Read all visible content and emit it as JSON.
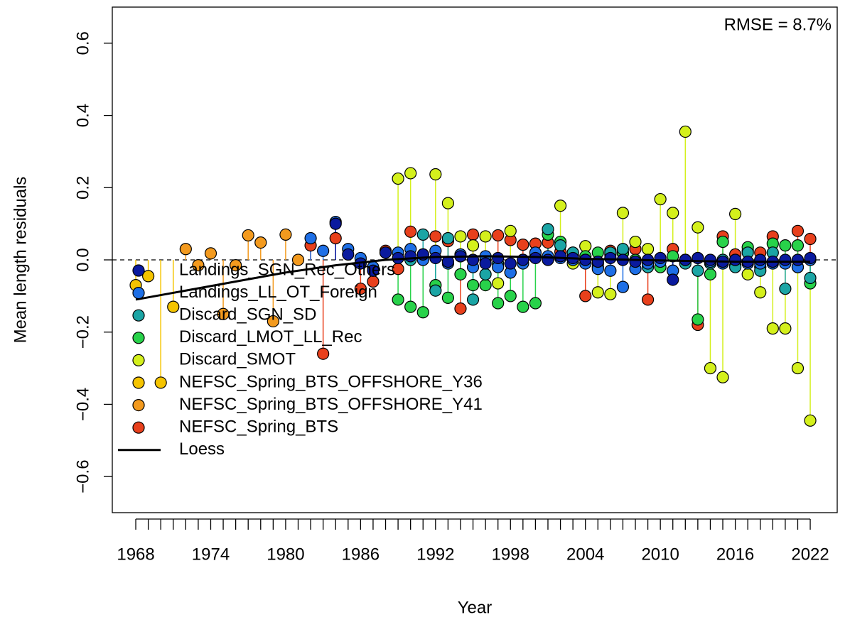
{
  "chart_data": {
    "type": "scatter",
    "x_label": "Year",
    "y_label": "Mean length residuals",
    "annotation": "RMSE = 8.7%",
    "xlim": [
      1966.12,
      2024.16
    ],
    "ylim": [
      -0.7,
      0.7
    ],
    "xticks": [
      1968,
      1974,
      1980,
      1986,
      1992,
      1998,
      2004,
      2010,
      2016,
      2022
    ],
    "x_minor_ticks": [
      1968,
      1969,
      1970,
      1971,
      1972,
      1973,
      1974,
      1975,
      1976,
      1977,
      1978,
      1979,
      1980,
      1981,
      1982,
      1983,
      1984,
      1985,
      1986,
      1987,
      1988,
      1989,
      1990,
      1991,
      1992,
      1993,
      1994,
      1995,
      1996,
      1997,
      1998,
      1999,
      2000,
      2001,
      2002,
      2003,
      2004,
      2005,
      2006,
      2007,
      2008,
      2009,
      2010,
      2011,
      2012,
      2013,
      2014,
      2015,
      2016,
      2017,
      2018,
      2019,
      2020,
      2021,
      2022
    ],
    "yticks": [
      {
        "value": -0.6,
        "label": "−0.6"
      },
      {
        "value": -0.4,
        "label": "−0.4"
      },
      {
        "value": -0.2,
        "label": "−0.2"
      },
      {
        "value": 0,
        "label": "0.0"
      },
      0.2,
      0.4,
      0.6
    ],
    "reference_line": 0,
    "legend_position": "left",
    "series": [
      {
        "name": "NEFSC_Spring_BTS_OFFSHORE_Y36",
        "color": "#F5C400",
        "x": [
          1968,
          1969,
          1970,
          1971
        ],
        "values": [
          -0.07,
          -0.045,
          -0.34,
          -0.13
        ]
      },
      {
        "name": "NEFSC_Spring_BTS_OFFSHORE_Y41",
        "color": "#F39A1E",
        "x": [
          1972,
          1973,
          1974,
          1975,
          1976,
          1977,
          1978,
          1979,
          1980,
          1981
        ],
        "values": [
          0.03,
          -0.015,
          0.018,
          -0.15,
          -0.015,
          0.068,
          0.048,
          -0.17,
          0.07,
          0.0
        ]
      },
      {
        "name": "NEFSC_Spring_BTS",
        "color": "#E8401C",
        "x": [
          1982,
          1983,
          1984,
          1986,
          1987,
          1988,
          1989,
          1990,
          1991,
          1992,
          1993,
          1994,
          1995,
          1996,
          1997,
          1998,
          1999,
          2000,
          2001,
          2002,
          2003,
          2004,
          2005,
          2006,
          2007,
          2008,
          2009,
          2010,
          2011,
          2012,
          2013,
          2015,
          2016,
          2017,
          2018,
          2019,
          2021,
          2022
        ],
        "values": [
          0.04,
          -0.26,
          0.06,
          -0.08,
          -0.06,
          0.025,
          -0.025,
          0.078,
          0.015,
          0.065,
          0.052,
          -0.135,
          0.07,
          0.0,
          0.068,
          0.055,
          0.042,
          0.045,
          0.048,
          0.022,
          0.012,
          -0.1,
          -0.01,
          0.025,
          0.018,
          0.03,
          -0.11,
          0.005,
          0.03,
          0.0,
          -0.18,
          0.065,
          0.015,
          0.025,
          0.02,
          0.065,
          0.08,
          0.058
        ]
      },
      {
        "name": "Discard_SMOT",
        "color": "#D4F01C",
        "x": [
          1989,
          1990,
          1992,
          1993,
          1994,
          1995,
          1996,
          1997,
          1998,
          2002,
          2003,
          2004,
          2005,
          2006,
          2007,
          2008,
          2009,
          2010,
          2011,
          2012,
          2013,
          2014,
          2015,
          2016,
          2017,
          2018,
          2019,
          2020,
          2021,
          2022
        ],
        "values": [
          0.225,
          0.24,
          0.237,
          0.157,
          0.065,
          0.04,
          0.065,
          -0.065,
          0.08,
          0.15,
          -0.01,
          0.038,
          -0.09,
          -0.095,
          0.13,
          0.05,
          0.03,
          0.168,
          0.13,
          0.355,
          0.09,
          -0.3,
          -0.325,
          0.127,
          -0.04,
          -0.09,
          -0.19,
          -0.19,
          -0.3,
          -0.445
        ]
      },
      {
        "name": "Discard_LMOT_LL_Rec",
        "color": "#28D24A",
        "x": [
          1989,
          1990,
          1991,
          1992,
          1993,
          1994,
          1995,
          1996,
          1997,
          1998,
          1999,
          2000,
          2001,
          2002,
          2003,
          2004,
          2005,
          2006,
          2007,
          2008,
          2009,
          2010,
          2011,
          2012,
          2013,
          2014,
          2015,
          2016,
          2017,
          2018,
          2019,
          2020,
          2021,
          2022
        ],
        "values": [
          -0.11,
          -0.13,
          -0.145,
          -0.07,
          -0.105,
          -0.04,
          -0.07,
          -0.07,
          -0.12,
          -0.1,
          -0.13,
          -0.12,
          0.07,
          0.05,
          0.02,
          0.01,
          0.02,
          0.015,
          0.02,
          0.0,
          -0.01,
          -0.02,
          0.01,
          -0.005,
          -0.165,
          -0.04,
          0.05,
          -0.015,
          0.035,
          -0.02,
          0.045,
          0.04,
          0.04,
          -0.065
        ]
      },
      {
        "name": "Discard_SGN_SD",
        "color": "#1BA5A5",
        "x": [
          1990,
          1991,
          1992,
          1993,
          1994,
          1995,
          1996,
          1997,
          1998,
          1999,
          2000,
          2001,
          2002,
          2003,
          2004,
          2005,
          2006,
          2007,
          2008,
          2009,
          2010,
          2011,
          2012,
          2013,
          2014,
          2015,
          2016,
          2017,
          2018,
          2019,
          2020,
          2021,
          2022
        ],
        "values": [
          0.0,
          0.07,
          -0.085,
          0.06,
          0.01,
          -0.11,
          -0.04,
          -0.01,
          -0.035,
          0.0,
          0.01,
          0.085,
          0.04,
          0.02,
          0.0,
          -0.02,
          0.02,
          0.03,
          -0.005,
          -0.02,
          0.0,
          -0.03,
          -0.01,
          -0.03,
          -0.01,
          0.0,
          -0.02,
          0.02,
          -0.03,
          0.02,
          -0.08,
          -0.02,
          -0.05
        ]
      },
      {
        "name": "Landings_LL_OT_Foreign",
        "color": "#1E6FE6",
        "x": [
          1982,
          1983,
          1984,
          1985,
          1986,
          1987,
          1988,
          1989,
          1990,
          1991,
          1992,
          1993,
          1994,
          1995,
          1996,
          1997,
          1998,
          1999,
          2000,
          2001,
          2002,
          2003,
          2004,
          2005,
          2006,
          2007,
          2008,
          2009,
          2010,
          2011,
          2012,
          2013,
          2014,
          2015,
          2016,
          2017,
          2018,
          2019,
          2020,
          2021,
          2022
        ],
        "values": [
          0.06,
          0.025,
          0.105,
          0.03,
          0.005,
          -0.02,
          0.02,
          0.02,
          0.03,
          0.0,
          0.025,
          -0.01,
          0.015,
          -0.02,
          0.01,
          -0.02,
          -0.035,
          -0.01,
          0.02,
          0.01,
          0.005,
          0.0,
          -0.01,
          -0.025,
          -0.03,
          -0.075,
          -0.025,
          -0.01,
          -0.005,
          -0.03,
          0.0,
          0.005,
          -0.005,
          -0.01,
          0.0,
          -0.01,
          -0.01,
          -0.01,
          -0.01,
          -0.02,
          0.0
        ]
      },
      {
        "name": "Landings_SGN_Rec_Others",
        "color": "#0A1A9E",
        "x": [
          1984,
          1985,
          1986,
          1987,
          1988,
          1989,
          1990,
          1991,
          1992,
          1993,
          1994,
          1995,
          1996,
          1997,
          1998,
          1999,
          2000,
          2001,
          2002,
          2003,
          2004,
          2005,
          2006,
          2007,
          2008,
          2009,
          2010,
          2011,
          2012,
          2013,
          2014,
          2015,
          2016,
          2017,
          2018,
          2019,
          2020,
          2021,
          2022
        ],
        "values": [
          0.1,
          0.015,
          -0.01,
          -0.03,
          0.02,
          0.005,
          0.01,
          0.015,
          0.005,
          -0.005,
          0.01,
          0.0,
          -0.01,
          0.005,
          -0.01,
          0.0,
          0.005,
          0.0,
          0.01,
          0.005,
          0.0,
          -0.005,
          0.005,
          0.0,
          -0.005,
          0.0,
          0.005,
          -0.055,
          0.0,
          0.005,
          0.0,
          -0.005,
          0.0,
          -0.005,
          0.0,
          -0.005,
          0.0,
          0.0,
          0.005
        ]
      }
    ],
    "legend_order": [
      7,
      6,
      5,
      4,
      3,
      0,
      1,
      2
    ],
    "loess": {
      "name": "Loess",
      "color": "#000000",
      "x": [
        1968,
        1972,
        1976,
        1980,
        1984,
        1988,
        1992,
        1996,
        2000,
        2004,
        2008,
        2012,
        2016,
        2020,
        2022
      ],
      "values": [
        -0.11,
        -0.085,
        -0.06,
        -0.035,
        -0.015,
        0.0,
        0.008,
        0.01,
        0.008,
        0.003,
        0.0,
        -0.003,
        -0.005,
        -0.005,
        -0.005
      ]
    }
  }
}
